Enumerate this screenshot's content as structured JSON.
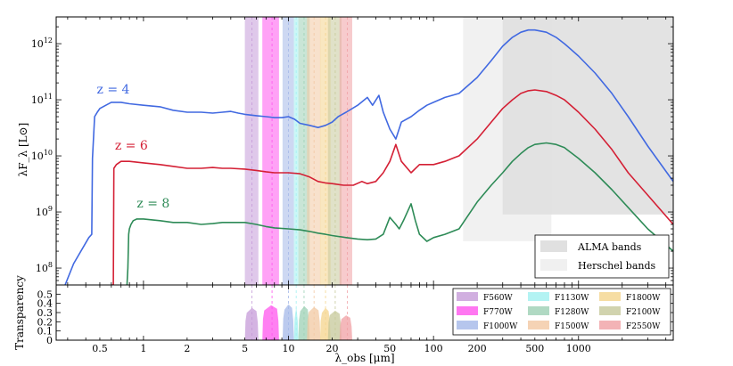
{
  "chart_data": [
    {
      "type": "line",
      "name": "SED panel",
      "xscale": "log",
      "yscale": "log",
      "xlim": [
        0.25,
        4500
      ],
      "ylim": [
        50000000,
        3000000000000
      ],
      "ylabel": "λF_λ [L⊙]",
      "x_ticks": [
        "0.5",
        "1",
        "2",
        "5",
        "10",
        "20",
        "50",
        "100",
        "200",
        "500",
        "1000"
      ],
      "y_ticks": [
        "10^8",
        "10^9",
        "10^10",
        "10^11",
        "10^12"
      ],
      "series": [
        {
          "name": "z = 4",
          "color": "#4169e1",
          "label_position": "left of curve near 0.55 μm",
          "points": [
            [
              0.25,
              20000000.0
            ],
            [
              0.33,
              120000000.0
            ],
            [
              0.42,
              350000000.0
            ],
            [
              0.44,
              400000000.0
            ],
            [
              0.445,
              9000000000.0
            ],
            [
              0.46,
              50000000000.0
            ],
            [
              0.48,
              60000000000.0
            ],
            [
              0.5,
              70000000000.0
            ],
            [
              0.55,
              80000000000.0
            ],
            [
              0.6,
              90000000000.0
            ],
            [
              0.7,
              90000000000.0
            ],
            [
              0.8,
              85000000000.0
            ],
            [
              1.0,
              80000000000.0
            ],
            [
              1.3,
              75000000000.0
            ],
            [
              1.6,
              65000000000.0
            ],
            [
              2.0,
              60000000000.0
            ],
            [
              2.5,
              60000000000.0
            ],
            [
              3.0,
              58000000000.0
            ],
            [
              3.5,
              60000000000.0
            ],
            [
              4.0,
              62000000000.0
            ],
            [
              4.5,
              58000000000.0
            ],
            [
              5.0,
              55000000000.0
            ],
            [
              6.0,
              52000000000.0
            ],
            [
              7.0,
              50000000000.0
            ],
            [
              8.0,
              48000000000.0
            ],
            [
              9.0,
              48000000000.0
            ],
            [
              10.0,
              50000000000.0
            ],
            [
              11.0,
              45000000000.0
            ],
            [
              12.0,
              38000000000.0
            ],
            [
              14.0,
              35000000000.0
            ],
            [
              16.0,
              32000000000.0
            ],
            [
              18.0,
              35000000000.0
            ],
            [
              20.0,
              40000000000.0
            ],
            [
              22.0,
              50000000000.0
            ],
            [
              25.0,
              60000000000.0
            ],
            [
              30.0,
              80000000000.0
            ],
            [
              35.0,
              110000000000.0
            ],
            [
              38.0,
              80000000000.0
            ],
            [
              42.0,
              120000000000.0
            ],
            [
              45.0,
              60000000000.0
            ],
            [
              50.0,
              30000000000.0
            ],
            [
              55.0,
              20000000000.0
            ],
            [
              60.0,
              40000000000.0
            ],
            [
              70.0,
              50000000000.0
            ],
            [
              80.0,
              65000000000.0
            ],
            [
              90.0,
              80000000000.0
            ],
            [
              100.0,
              90000000000.0
            ],
            [
              120.0,
              110000000000.0
            ],
            [
              150.0,
              130000000000.0
            ],
            [
              200.0,
              250000000000.0
            ],
            [
              250.0,
              500000000000.0
            ],
            [
              300.0,
              900000000000.0
            ],
            [
              350.0,
              1300000000000.0
            ],
            [
              400.0,
              1600000000000.0
            ],
            [
              450.0,
              1750000000000.0
            ],
            [
              500.0,
              1750000000000.0
            ],
            [
              600.0,
              1600000000000.0
            ],
            [
              700.0,
              1300000000000.0
            ],
            [
              800.0,
              1000000000000.0
            ],
            [
              1000.0,
              600000000000.0
            ],
            [
              1300.0,
              300000000000.0
            ],
            [
              1700.0,
              130000000000.0
            ],
            [
              2200.0,
              50000000000.0
            ],
            [
              3000.0,
              15000000000.0
            ],
            [
              4500.0,
              3500000000.0
            ]
          ]
        },
        {
          "name": "z = 6",
          "color": "#d42035",
          "label_position": "left of curve near 0.75 μm",
          "points": [
            [
              0.6,
              50000000.0
            ],
            [
              0.62,
              50000000.0
            ],
            [
              0.625,
              6000000000.0
            ],
            [
              0.65,
              7000000000.0
            ],
            [
              0.7,
              8000000000.0
            ],
            [
              0.8,
              8000000000.0
            ],
            [
              1.0,
              7500000000.0
            ],
            [
              1.3,
              7000000000.0
            ],
            [
              1.6,
              6500000000.0
            ],
            [
              2.0,
              6000000000.0
            ],
            [
              2.5,
              6000000000.0
            ],
            [
              3.0,
              6200000000.0
            ],
            [
              3.5,
              6000000000.0
            ],
            [
              4.0,
              6000000000.0
            ],
            [
              5.0,
              5800000000.0
            ],
            [
              6.0,
              5500000000.0
            ],
            [
              7.0,
              5200000000.0
            ],
            [
              8.0,
              5000000000.0
            ],
            [
              10.0,
              5000000000.0
            ],
            [
              12.0,
              4800000000.0
            ],
            [
              14.0,
              4200000000.0
            ],
            [
              16.0,
              3500000000.0
            ],
            [
              18.0,
              3300000000.0
            ],
            [
              20.0,
              3200000000.0
            ],
            [
              24.0,
              3000000000.0
            ],
            [
              28.0,
              3000000000.0
            ],
            [
              32.0,
              3500000000.0
            ],
            [
              35.0,
              3200000000.0
            ],
            [
              40.0,
              3500000000.0
            ],
            [
              45.0,
              5000000000.0
            ],
            [
              50.0,
              8000000000.0
            ],
            [
              55.0,
              16000000000.0
            ],
            [
              60.0,
              8000000000.0
            ],
            [
              70.0,
              5000000000.0
            ],
            [
              80.0,
              7000000000.0
            ],
            [
              100.0,
              7000000000.0
            ],
            [
              120.0,
              8000000000.0
            ],
            [
              150.0,
              10000000000.0
            ],
            [
              200.0,
              20000000000.0
            ],
            [
              250.0,
              40000000000.0
            ],
            [
              300.0,
              70000000000.0
            ],
            [
              350.0,
              100000000000.0
            ],
            [
              400.0,
              130000000000.0
            ],
            [
              450.0,
              145000000000.0
            ],
            [
              500.0,
              150000000000.0
            ],
            [
              600.0,
              140000000000.0
            ],
            [
              700.0,
              120000000000.0
            ],
            [
              800.0,
              100000000000.0
            ],
            [
              1000.0,
              60000000000.0
            ],
            [
              1300.0,
              30000000000.0
            ],
            [
              1700.0,
              13000000000.0
            ],
            [
              2200.0,
              5000000000.0
            ],
            [
              3000.0,
              2000000000.0
            ],
            [
              4500.0,
              600000000.0
            ]
          ]
        },
        {
          "name": "z = 8",
          "color": "#2e8b57",
          "label_position": "left of curve near 0.95 μm",
          "points": [
            [
              0.77,
              50000000.0
            ],
            [
              0.78,
              100000000.0
            ],
            [
              0.79,
              400000000.0
            ],
            [
              0.8,
              500000000.0
            ],
            [
              0.82,
              600000000.0
            ],
            [
              0.85,
              700000000.0
            ],
            [
              0.9,
              750000000.0
            ],
            [
              1.0,
              750000000.0
            ],
            [
              1.3,
              700000000.0
            ],
            [
              1.6,
              650000000.0
            ],
            [
              2.0,
              650000000.0
            ],
            [
              2.5,
              600000000.0
            ],
            [
              3.0,
              620000000.0
            ],
            [
              3.5,
              650000000.0
            ],
            [
              4.0,
              650000000.0
            ],
            [
              5.0,
              650000000.0
            ],
            [
              6.0,
              600000000.0
            ],
            [
              7.0,
              550000000.0
            ],
            [
              8.0,
              520000000.0
            ],
            [
              10.0,
              500000000.0
            ],
            [
              12.0,
              480000000.0
            ],
            [
              14.0,
              450000000.0
            ],
            [
              16.0,
              420000000.0
            ],
            [
              18.0,
              400000000.0
            ],
            [
              20.0,
              380000000.0
            ],
            [
              25.0,
              350000000.0
            ],
            [
              30.0,
              330000000.0
            ],
            [
              35.0,
              320000000.0
            ],
            [
              40.0,
              330000000.0
            ],
            [
              45.0,
              400000000.0
            ],
            [
              50.0,
              800000000.0
            ],
            [
              55.0,
              600000000.0
            ],
            [
              58.0,
              500000000.0
            ],
            [
              62.0,
              700000000.0
            ],
            [
              70.0,
              1400000000.0
            ],
            [
              75.0,
              700000000.0
            ],
            [
              80.0,
              400000000.0
            ],
            [
              90.0,
              300000000.0
            ],
            [
              100.0,
              350000000.0
            ],
            [
              120.0,
              400000000.0
            ],
            [
              150.0,
              500000000.0
            ],
            [
              200.0,
              1500000000.0
            ],
            [
              250.0,
              3000000000.0
            ],
            [
              300.0,
              5000000000.0
            ],
            [
              350.0,
              8000000000.0
            ],
            [
              400.0,
              11000000000.0
            ],
            [
              450.0,
              14000000000.0
            ],
            [
              500.0,
              16000000000.0
            ],
            [
              600.0,
              17000000000.0
            ],
            [
              700.0,
              16000000000.0
            ],
            [
              800.0,
              14000000000.0
            ],
            [
              1000.0,
              9000000000.0
            ],
            [
              1300.0,
              5000000000.0
            ],
            [
              1700.0,
              2500000000.0
            ],
            [
              2200.0,
              1200000000.0
            ],
            [
              3000.0,
              500000000.0
            ],
            [
              4500.0,
              200000000.0
            ]
          ]
        }
      ],
      "shaded_regions": [
        {
          "name": "Herschel bands",
          "color": "#f0f0f0",
          "x_range": [
            160,
            650
          ],
          "y_range": [
            300000000,
            3000000000000
          ]
        },
        {
          "name": "ALMA bands",
          "color": "#e0e0e0",
          "x_range": [
            300,
            4500
          ],
          "y_range": [
            900000000,
            3000000000000
          ]
        }
      ],
      "legend": {
        "placement": "bottom-right",
        "entries": [
          "ALMA bands",
          "Herschel bands"
        ]
      }
    },
    {
      "type": "area",
      "name": "Filter transparency panel",
      "xscale": "log",
      "xlim": [
        0.25,
        4500
      ],
      "ylim": [
        0,
        0.6
      ],
      "ylabel": "Transparency",
      "xlabel": "λ_obs [μm]",
      "y_ticks": [
        "0",
        "0.1",
        "0.2",
        "0.3",
        "0.4",
        "0.5"
      ],
      "filters": [
        {
          "name": "F560W",
          "color": "#c59bd8",
          "center": 5.6,
          "range": [
            5.0,
            6.2
          ],
          "peak": 0.35
        },
        {
          "name": "F770W",
          "color": "#ff55ee",
          "center": 7.7,
          "range": [
            6.6,
            8.6
          ],
          "peak": 0.38
        },
        {
          "name": "F1000W",
          "color": "#a4b8e8",
          "center": 10.0,
          "range": [
            9.1,
            10.9
          ],
          "peak": 0.39
        },
        {
          "name": "F1130W",
          "color": "#a0f0f0",
          "center": 11.3,
          "range": [
            10.9,
            11.7
          ],
          "peak": 0.38
        },
        {
          "name": "F1280W",
          "color": "#9cd0b4",
          "center": 12.8,
          "range": [
            11.7,
            14.0
          ],
          "peak": 0.37
        },
        {
          "name": "F1500W",
          "color": "#f2c8a2",
          "center": 15.0,
          "range": [
            13.4,
            16.6
          ],
          "peak": 0.36
        },
        {
          "name": "F1800W",
          "color": "#f4d48c",
          "center": 18.0,
          "range": [
            16.5,
            19.5
          ],
          "peak": 0.35
        },
        {
          "name": "F2100W",
          "color": "#c6c89a",
          "center": 21.0,
          "range": [
            18.7,
            23.2
          ],
          "peak": 0.32
        },
        {
          "name": "F2550W",
          "color": "#f0a0a4",
          "center": 25.5,
          "range": [
            22.5,
            27.5
          ],
          "peak": 0.27
        }
      ]
    }
  ]
}
